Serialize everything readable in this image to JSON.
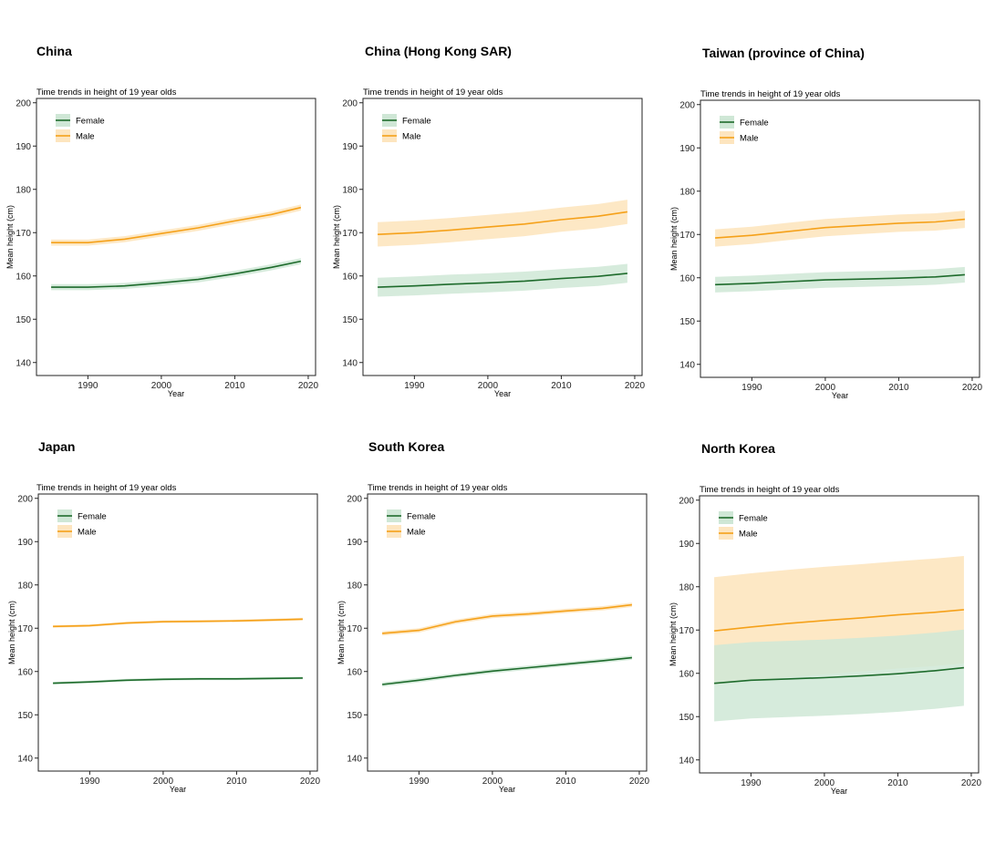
{
  "colors": {
    "female_line": "#1e6b2c",
    "female_band": "#cfe7d6",
    "male_line": "#f5a11a",
    "male_band": "#fde5bf"
  },
  "common": {
    "subtitle": "Time trends in height of 19 year olds",
    "xlabel": "Year",
    "ylabel": "Mean height (cm)",
    "legend": [
      "Female",
      "Male"
    ],
    "yticks": [
      140,
      150,
      160,
      170,
      180,
      190,
      200
    ],
    "xticks": [
      1990,
      2000,
      2010,
      2020
    ]
  },
  "chart_data": [
    {
      "type": "line",
      "title": "China",
      "subtitle": "Time trends in height of 19 year olds",
      "xlabel": "Year",
      "ylabel": "Mean height (cm)",
      "xlim": [
        1983,
        2021
      ],
      "ylim": [
        137,
        201
      ],
      "x": [
        1985,
        1990,
        1995,
        2000,
        2005,
        2010,
        2015,
        2019
      ],
      "series": [
        {
          "name": "Female",
          "values": [
            157.4,
            157.4,
            157.7,
            158.4,
            159.2,
            160.5,
            162.0,
            163.4
          ],
          "band": 0.7
        },
        {
          "name": "Male",
          "values": [
            167.7,
            167.7,
            168.5,
            169.8,
            171.1,
            172.7,
            174.2,
            175.8
          ],
          "band": 0.7
        }
      ]
    },
    {
      "type": "line",
      "title": "China (Hong Kong SAR)",
      "subtitle": "Time trends in height of 19 year olds",
      "xlabel": "Year",
      "ylabel": "Mean height (cm)",
      "xlim": [
        1983,
        2021
      ],
      "ylim": [
        137,
        201
      ],
      "x": [
        1985,
        1990,
        1995,
        2000,
        2005,
        2010,
        2015,
        2019
      ],
      "series": [
        {
          "name": "Female",
          "values": [
            157.4,
            157.7,
            158.1,
            158.4,
            158.8,
            159.4,
            159.9,
            160.6
          ],
          "band": 2.2
        },
        {
          "name": "Male",
          "values": [
            169.6,
            170.0,
            170.6,
            171.3,
            172.0,
            173.0,
            173.8,
            174.8
          ],
          "band": 2.8
        }
      ]
    },
    {
      "type": "line",
      "title": "Taiwan (province of China)",
      "subtitle": "Time trends in height of 19 year olds",
      "xlabel": "Year",
      "ylabel": "Mean height (cm)",
      "xlim": [
        1983,
        2021
      ],
      "ylim": [
        137,
        201
      ],
      "x": [
        1985,
        1990,
        1995,
        2000,
        2005,
        2010,
        2015,
        2019
      ],
      "series": [
        {
          "name": "Female",
          "values": [
            158.4,
            158.7,
            159.1,
            159.5,
            159.7,
            159.9,
            160.2,
            160.7
          ],
          "band": 1.8
        },
        {
          "name": "Male",
          "values": [
            169.2,
            169.8,
            170.7,
            171.6,
            172.1,
            172.6,
            172.9,
            173.5
          ],
          "band": 2.0
        }
      ]
    },
    {
      "type": "line",
      "title": "Japan",
      "subtitle": "Time trends in height of 19 year olds",
      "xlabel": "Year",
      "ylabel": "Mean height (cm)",
      "xlim": [
        1983,
        2021
      ],
      "ylim": [
        137,
        201
      ],
      "x": [
        1985,
        1990,
        1995,
        2000,
        2005,
        2010,
        2015,
        2019
      ],
      "series": [
        {
          "name": "Female",
          "values": [
            157.3,
            157.6,
            158.0,
            158.2,
            158.3,
            158.3,
            158.4,
            158.5
          ],
          "band": 0.3
        },
        {
          "name": "Male",
          "values": [
            170.4,
            170.6,
            171.2,
            171.5,
            171.6,
            171.7,
            171.9,
            172.1
          ],
          "band": 0.3
        }
      ]
    },
    {
      "type": "line",
      "title": "South Korea",
      "subtitle": "Time trends in height of 19 year olds",
      "xlabel": "Year",
      "ylabel": "Mean height (cm)",
      "xlim": [
        1983,
        2021
      ],
      "ylim": [
        137,
        201
      ],
      "x": [
        1985,
        1990,
        1995,
        2000,
        2005,
        2010,
        2015,
        2019
      ],
      "series": [
        {
          "name": "Female",
          "values": [
            157.0,
            158.0,
            159.1,
            160.1,
            160.9,
            161.7,
            162.5,
            163.2
          ],
          "band": 0.5
        },
        {
          "name": "Male",
          "values": [
            168.8,
            169.5,
            171.5,
            172.8,
            173.3,
            174.0,
            174.6,
            175.4
          ],
          "band": 0.5
        }
      ]
    },
    {
      "type": "line",
      "title": "North Korea",
      "subtitle": "Time trends in height of 19 year olds",
      "xlabel": "Year",
      "ylabel": "Mean height (cm)",
      "xlim": [
        1983,
        2021
      ],
      "ylim": [
        137,
        201
      ],
      "x": [
        1985,
        1990,
        1995,
        2000,
        2005,
        2010,
        2015,
        2019
      ],
      "series": [
        {
          "name": "Female",
          "values": [
            157.7,
            158.4,
            158.7,
            159.0,
            159.4,
            159.9,
            160.6,
            161.3
          ],
          "band": 8.8
        },
        {
          "name": "Male",
          "values": [
            169.8,
            170.7,
            171.5,
            172.2,
            172.8,
            173.5,
            174.1,
            174.7
          ],
          "band": 12.4
        }
      ]
    }
  ]
}
